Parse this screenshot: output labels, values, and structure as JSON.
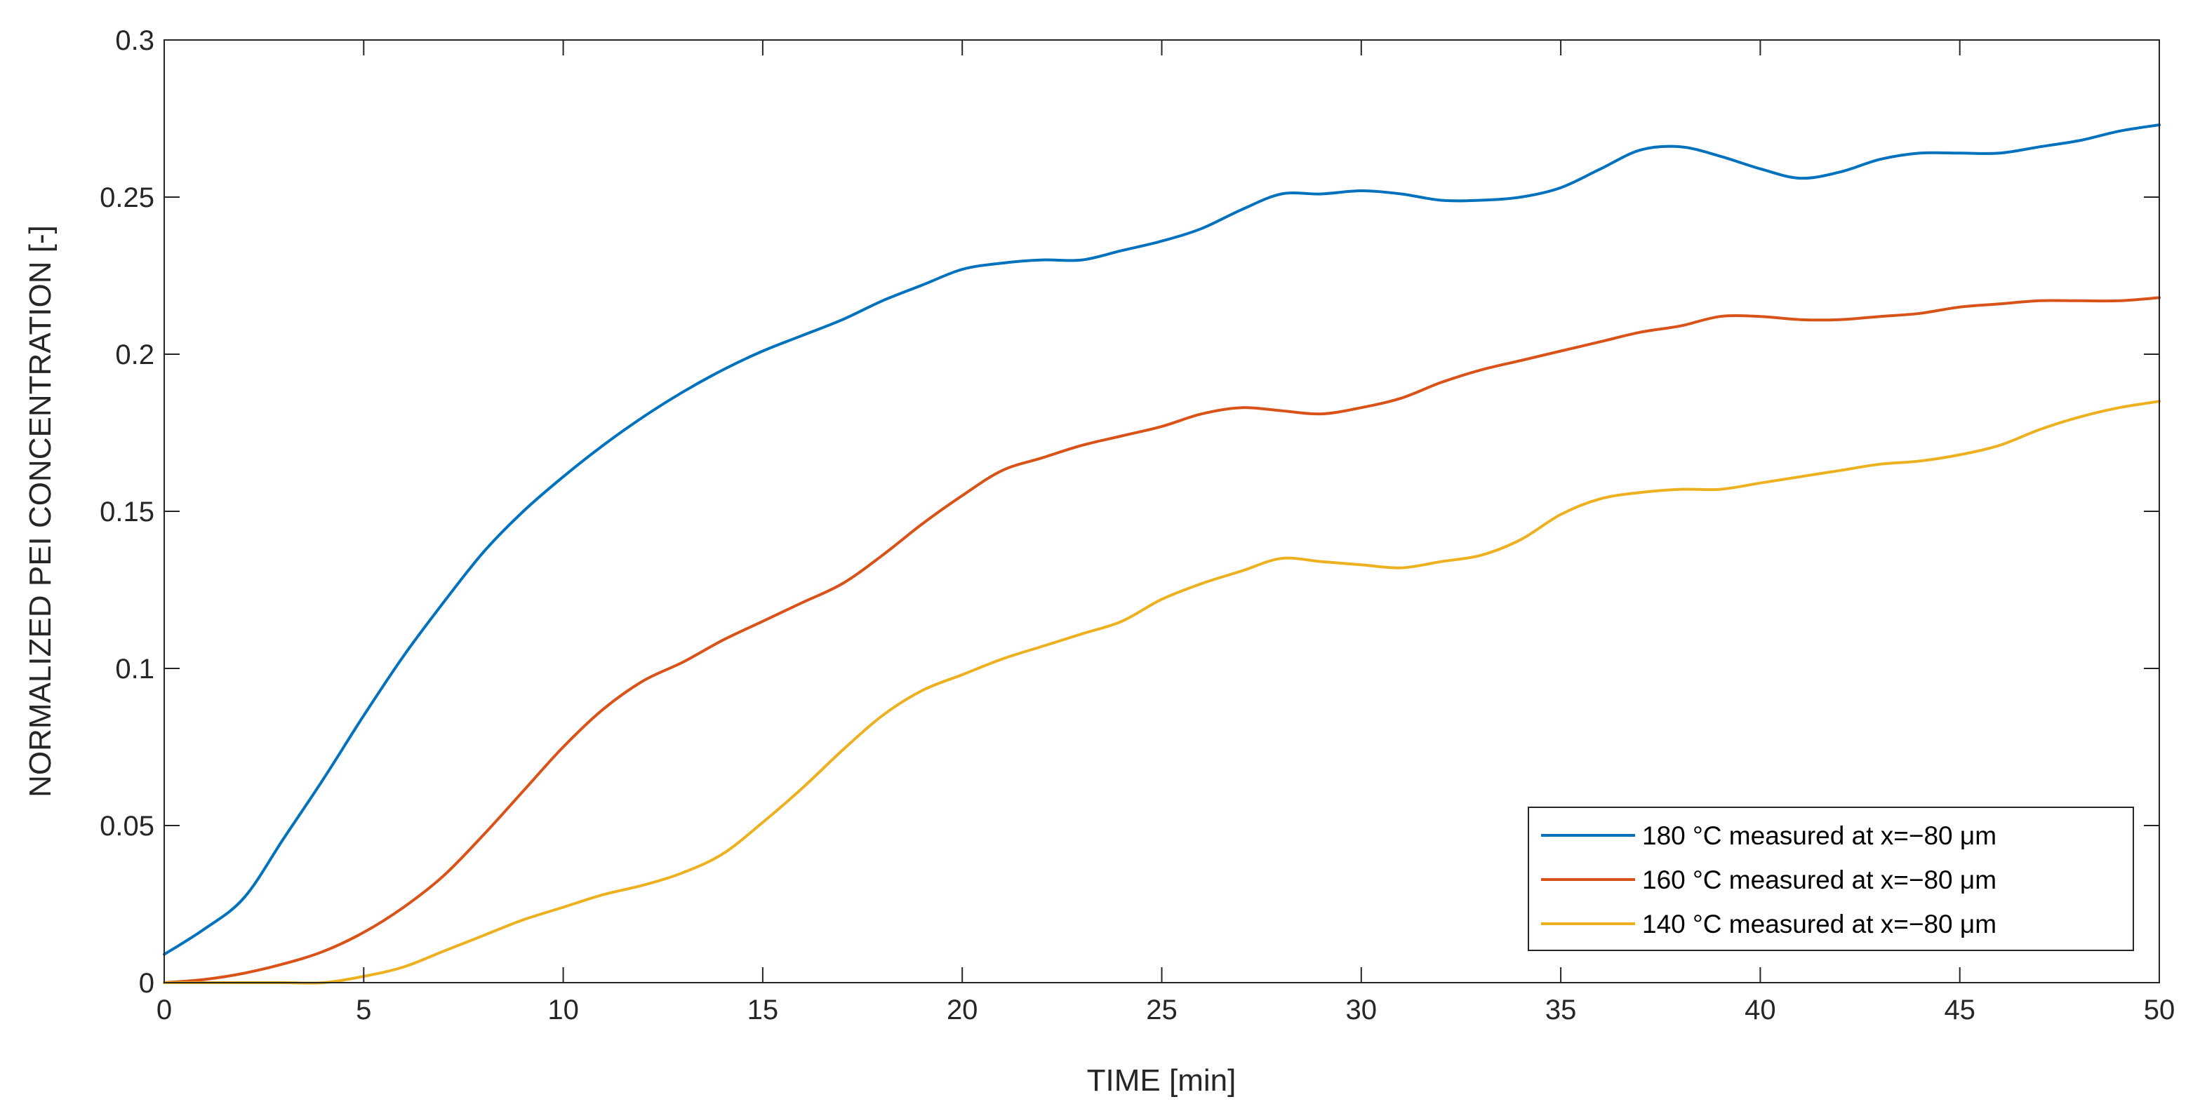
{
  "chart_data": {
    "type": "line",
    "title": "",
    "xlabel": "TIME [min]",
    "ylabel": "NORMALIZED PEI CONCENTRATION [-]",
    "xlim": [
      0,
      50
    ],
    "ylim": [
      0,
      0.3
    ],
    "xticks": [
      0,
      5,
      10,
      15,
      20,
      25,
      30,
      35,
      40,
      45,
      50
    ],
    "xtick_labels": [
      "0",
      "5",
      "10",
      "15",
      "20",
      "25",
      "30",
      "35",
      "40",
      "45",
      "50"
    ],
    "yticks": [
      0,
      0.05,
      0.1,
      0.15,
      0.2,
      0.25,
      0.3
    ],
    "ytick_labels": [
      "0",
      "0.05",
      "0.1",
      "0.15",
      "0.2",
      "0.25",
      "0.3"
    ],
    "grid": false,
    "legend_position": "bottom-right",
    "series": [
      {
        "name": "180 °C measured at x=−80 μm",
        "color": "#0072BD",
        "points": [
          [
            0,
            0.009
          ],
          [
            1,
            0.017
          ],
          [
            2,
            0.027
          ],
          [
            3,
            0.046
          ],
          [
            4,
            0.065
          ],
          [
            5,
            0.085
          ],
          [
            6,
            0.104
          ],
          [
            7,
            0.121
          ],
          [
            8,
            0.137
          ],
          [
            9,
            0.15
          ],
          [
            10,
            0.161
          ],
          [
            11,
            0.171
          ],
          [
            12,
            0.18
          ],
          [
            13,
            0.188
          ],
          [
            14,
            0.195
          ],
          [
            15,
            0.201
          ],
          [
            16,
            0.206
          ],
          [
            17,
            0.211
          ],
          [
            18,
            0.217
          ],
          [
            19,
            0.222
          ],
          [
            20,
            0.227
          ],
          [
            21,
            0.229
          ],
          [
            22,
            0.23
          ],
          [
            23,
            0.23
          ],
          [
            24,
            0.233
          ],
          [
            25,
            0.236
          ],
          [
            26,
            0.24
          ],
          [
            27,
            0.246
          ],
          [
            28,
            0.251
          ],
          [
            29,
            0.251
          ],
          [
            30,
            0.252
          ],
          [
            31,
            0.251
          ],
          [
            32,
            0.249
          ],
          [
            33,
            0.249
          ],
          [
            34,
            0.25
          ],
          [
            35,
            0.253
          ],
          [
            36,
            0.259
          ],
          [
            37,
            0.265
          ],
          [
            38,
            0.266
          ],
          [
            39,
            0.263
          ],
          [
            40,
            0.259
          ],
          [
            41,
            0.256
          ],
          [
            42,
            0.258
          ],
          [
            43,
            0.262
          ],
          [
            44,
            0.264
          ],
          [
            45,
            0.264
          ],
          [
            46,
            0.264
          ],
          [
            47,
            0.266
          ],
          [
            48,
            0.268
          ],
          [
            49,
            0.271
          ],
          [
            50,
            0.273
          ]
        ]
      },
      {
        "name": "160 °C measured at x=−80 μm",
        "color": "#D95319",
        "points": [
          [
            0,
            0.0
          ],
          [
            1,
            0.001
          ],
          [
            2,
            0.003
          ],
          [
            3,
            0.006
          ],
          [
            4,
            0.01
          ],
          [
            5,
            0.016
          ],
          [
            6,
            0.024
          ],
          [
            7,
            0.034
          ],
          [
            8,
            0.047
          ],
          [
            9,
            0.061
          ],
          [
            10,
            0.075
          ],
          [
            11,
            0.087
          ],
          [
            12,
            0.096
          ],
          [
            13,
            0.102
          ],
          [
            14,
            0.109
          ],
          [
            15,
            0.115
          ],
          [
            16,
            0.121
          ],
          [
            17,
            0.127
          ],
          [
            18,
            0.136
          ],
          [
            19,
            0.146
          ],
          [
            20,
            0.155
          ],
          [
            21,
            0.163
          ],
          [
            22,
            0.167
          ],
          [
            23,
            0.171
          ],
          [
            24,
            0.174
          ],
          [
            25,
            0.177
          ],
          [
            26,
            0.181
          ],
          [
            27,
            0.183
          ],
          [
            28,
            0.182
          ],
          [
            29,
            0.181
          ],
          [
            30,
            0.183
          ],
          [
            31,
            0.186
          ],
          [
            32,
            0.191
          ],
          [
            33,
            0.195
          ],
          [
            34,
            0.198
          ],
          [
            35,
            0.201
          ],
          [
            36,
            0.204
          ],
          [
            37,
            0.207
          ],
          [
            38,
            0.209
          ],
          [
            39,
            0.212
          ],
          [
            40,
            0.212
          ],
          [
            41,
            0.211
          ],
          [
            42,
            0.211
          ],
          [
            43,
            0.212
          ],
          [
            44,
            0.213
          ],
          [
            45,
            0.215
          ],
          [
            46,
            0.216
          ],
          [
            47,
            0.217
          ],
          [
            48,
            0.217
          ],
          [
            49,
            0.217
          ],
          [
            50,
            0.218
          ]
        ]
      },
      {
        "name": "140 °C measured at x=−80 μm",
        "color": "#EDB120",
        "points": [
          [
            0,
            0.0
          ],
          [
            1,
            0.0
          ],
          [
            2,
            0.0
          ],
          [
            3,
            0.0
          ],
          [
            4,
            0.0
          ],
          [
            5,
            0.002
          ],
          [
            6,
            0.005
          ],
          [
            7,
            0.01
          ],
          [
            8,
            0.015
          ],
          [
            9,
            0.02
          ],
          [
            10,
            0.024
          ],
          [
            11,
            0.028
          ],
          [
            12,
            0.031
          ],
          [
            13,
            0.035
          ],
          [
            14,
            0.041
          ],
          [
            15,
            0.051
          ],
          [
            16,
            0.062
          ],
          [
            17,
            0.074
          ],
          [
            18,
            0.085
          ],
          [
            19,
            0.093
          ],
          [
            20,
            0.098
          ],
          [
            21,
            0.103
          ],
          [
            22,
            0.107
          ],
          [
            23,
            0.111
          ],
          [
            24,
            0.115
          ],
          [
            25,
            0.122
          ],
          [
            26,
            0.127
          ],
          [
            27,
            0.131
          ],
          [
            28,
            0.135
          ],
          [
            29,
            0.134
          ],
          [
            30,
            0.133
          ],
          [
            31,
            0.132
          ],
          [
            32,
            0.134
          ],
          [
            33,
            0.136
          ],
          [
            34,
            0.141
          ],
          [
            35,
            0.149
          ],
          [
            36,
            0.154
          ],
          [
            37,
            0.156
          ],
          [
            38,
            0.157
          ],
          [
            39,
            0.157
          ],
          [
            40,
            0.159
          ],
          [
            41,
            0.161
          ],
          [
            42,
            0.163
          ],
          [
            43,
            0.165
          ],
          [
            44,
            0.166
          ],
          [
            45,
            0.168
          ],
          [
            46,
            0.171
          ],
          [
            47,
            0.176
          ],
          [
            48,
            0.18
          ],
          [
            49,
            0.183
          ],
          [
            50,
            0.185
          ]
        ]
      }
    ]
  }
}
